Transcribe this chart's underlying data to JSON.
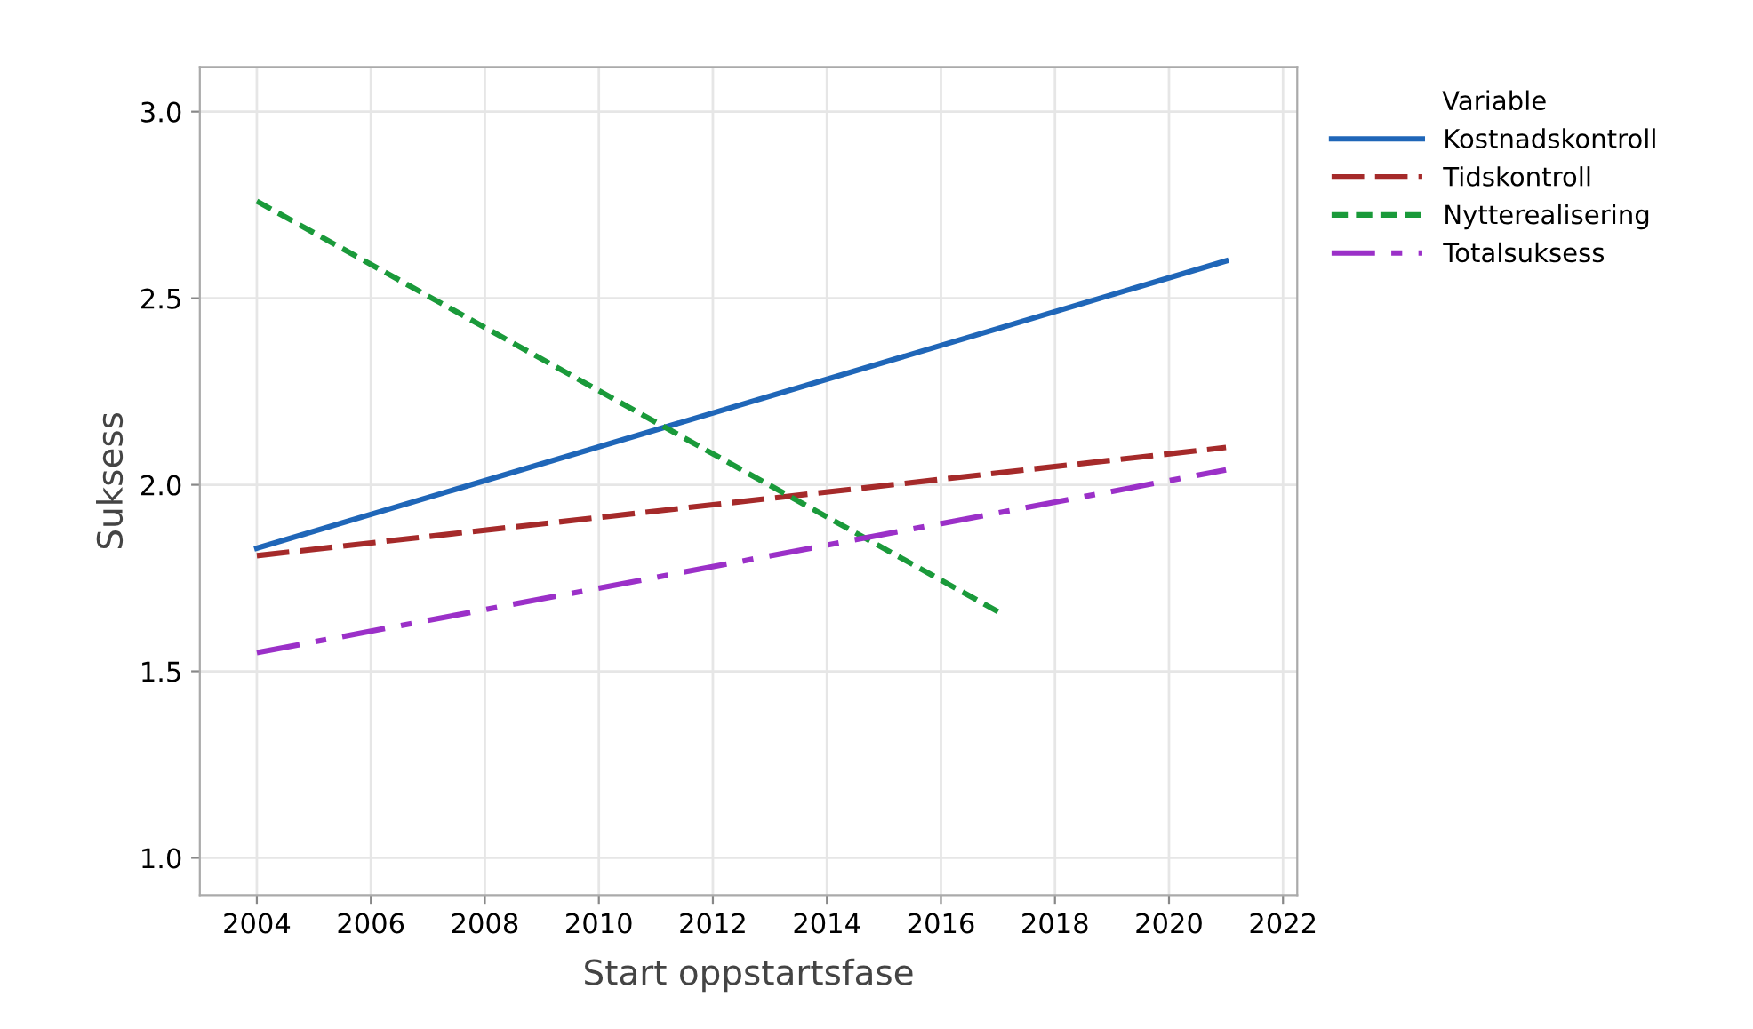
{
  "chart_data": {
    "type": "line",
    "xlabel": "Start oppstartsfase",
    "ylabel": "Suksess",
    "legend_title": "Variable",
    "xlim": [
      2003,
      2022.25
    ],
    "xticks": [
      2004,
      2006,
      2008,
      2010,
      2012,
      2014,
      2016,
      2018,
      2020,
      2022
    ],
    "ylim": [
      0.9,
      3.12
    ],
    "yticks": [
      {
        "value": 1.0,
        "label": "1.0"
      },
      {
        "value": 1.5,
        "label": "1.5"
      },
      {
        "value": 2.0,
        "label": "2.0"
      },
      {
        "value": 2.5,
        "label": "2.5"
      },
      {
        "value": 3.0,
        "label": "3.0"
      }
    ],
    "grid": true,
    "legend": "top right",
    "marker": "none",
    "series": [
      {
        "name": "Kostnadskontroll",
        "color": "#1f66b8",
        "line_style": "solid",
        "x": [
          2004,
          2021
        ],
        "values": [
          1.83,
          2.6
        ]
      },
      {
        "name": "Tidskontroll",
        "color": "#a52a2a",
        "line_style": "dashed",
        "x": [
          2004,
          2021
        ],
        "values": [
          1.81,
          2.1
        ]
      },
      {
        "name": "Nytterealisering",
        "color": "#1a9a3a",
        "line_style": "dotted",
        "x": [
          2004,
          2017
        ],
        "values": [
          2.76,
          1.66
        ]
      },
      {
        "name": "Totalsuksess",
        "color": "#9b30c8",
        "line_style": "dashdot",
        "x": [
          2004,
          2021
        ],
        "values": [
          1.55,
          2.04
        ]
      }
    ]
  }
}
